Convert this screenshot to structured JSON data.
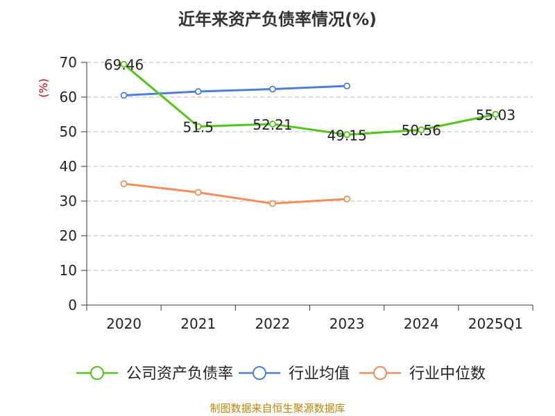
{
  "chart_data": {
    "type": "line",
    "title": "近年来资产负债率情况(%)",
    "ylabel": "(%)",
    "categories": [
      "2020",
      "2021",
      "2022",
      "2023",
      "2024",
      "2025Q1"
    ],
    "ylim": [
      0,
      70
    ],
    "yticks": [
      0,
      10,
      20,
      30,
      40,
      50,
      60,
      70
    ],
    "grid": true,
    "legend_position": "bottom",
    "series": [
      {
        "name": "公司资产负债率",
        "color": "#52c41a",
        "values": [
          69.46,
          51.5,
          52.21,
          49.15,
          50.56,
          55.03
        ],
        "labels": [
          "69.46",
          "51.5",
          "52.21",
          "49.15",
          "50.56",
          "55.03"
        ]
      },
      {
        "name": "行业均值",
        "color": "#4e7fd6",
        "values": [
          60.5,
          61.6,
          62.3,
          63.2,
          null,
          null
        ]
      },
      {
        "name": "行业中位数",
        "color": "#f28e5c",
        "values": [
          35.0,
          32.5,
          29.3,
          30.6,
          null,
          null
        ]
      }
    ]
  },
  "footer": {
    "source": "制图数据来自恒生聚源数据库"
  }
}
